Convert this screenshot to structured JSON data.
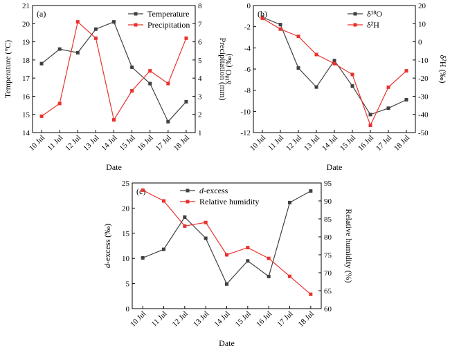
{
  "chart_data": [
    {
      "type": "line",
      "panel_label": "(a)",
      "categories": [
        "10 Jul",
        "11 Jul",
        "12 Jul",
        "13 Jul",
        "14 Jul",
        "15 Jul",
        "16 Jul",
        "17 Jul",
        "18 Jul"
      ],
      "xlabel": "Date",
      "ylabel_left": "Temperature (°C)",
      "ylabel_right": "Precipitation (mm)",
      "ylim_left": [
        14,
        21
      ],
      "ylim_right": [
        1,
        8
      ],
      "yticks_left": [
        "14",
        "15",
        "16",
        "17",
        "18",
        "19",
        "20",
        "21"
      ],
      "yticks_right": [
        "1",
        "2",
        "3",
        "4",
        "5",
        "6",
        "7",
        "8"
      ],
      "legend_position": "top-right",
      "series": [
        {
          "name": "Temperature",
          "axis": "left",
          "color": "#404040",
          "marker": "square",
          "values": [
            17.8,
            18.6,
            18.4,
            19.7,
            20.1,
            17.6,
            16.7,
            14.6,
            15.7
          ]
        },
        {
          "name": "Precipitation",
          "axis": "right",
          "color": "#e8322d",
          "marker": "square",
          "values": [
            1.9,
            2.6,
            7.1,
            6.2,
            1.7,
            3.3,
            4.4,
            3.7,
            6.2
          ]
        }
      ]
    },
    {
      "type": "line",
      "panel_label": "(b)",
      "categories": [
        "10 Jul",
        "11 Jul",
        "12 Jul",
        "13 Jul",
        "14 Jul",
        "15 Jul",
        "16 Jul",
        "17 Jul",
        "18 Jul"
      ],
      "xlabel": "Date",
      "ylabel_left": "δ¹⁸O (‰)",
      "ylabel_right": "δ²H (‰)",
      "ylim_left": [
        -12,
        0
      ],
      "ylim_right": [
        -50,
        20
      ],
      "yticks_left": [
        "-12",
        "-10",
        "-8",
        "-6",
        "-4",
        "-2",
        "0"
      ],
      "yticks_right": [
        "-50",
        "-40",
        "-30",
        "-20",
        "-10",
        "0",
        "10",
        "20"
      ],
      "legend_position": "top-right",
      "series": [
        {
          "name": "δ¹⁸O",
          "axis": "left",
          "color": "#404040",
          "marker": "square",
          "values": [
            -1.1,
            -1.8,
            -5.9,
            -7.7,
            -5.2,
            -7.6,
            -10.3,
            -9.7,
            -8.9
          ]
        },
        {
          "name": "δ²H",
          "axis": "right",
          "color": "#e8322d",
          "marker": "square",
          "values": [
            13,
            7,
            3,
            -7,
            -12,
            -18,
            -46,
            -25,
            -16
          ]
        }
      ]
    },
    {
      "type": "line",
      "panel_label": "(c)",
      "categories": [
        "10 Jul",
        "11 Jul",
        "12 Jul",
        "13 Jul",
        "14 Jul",
        "15 Jul",
        "16 Jul",
        "17 Jul",
        "18 Jul"
      ],
      "xlabel": "Date",
      "ylabel_left": "d-excess (‰)",
      "ylabel_right": "Relative humidity (%)",
      "ylim_left": [
        0,
        25
      ],
      "ylim_right": [
        60,
        95
      ],
      "yticks_left": [
        "0",
        "5",
        "10",
        "15",
        "20",
        "25"
      ],
      "yticks_right": [
        "60",
        "65",
        "70",
        "75",
        "80",
        "85",
        "90",
        "95"
      ],
      "legend_position": "top-center",
      "series": [
        {
          "name": "d-excess",
          "axis": "left",
          "color": "#404040",
          "marker": "square",
          "values": [
            10.1,
            11.8,
            18.2,
            14.0,
            4.9,
            9.5,
            6.4,
            21.1,
            23.4
          ]
        },
        {
          "name": "Relative humidity",
          "axis": "right",
          "color": "#e8322d",
          "marker": "square",
          "values": [
            93,
            90,
            83,
            84,
            75,
            77,
            74,
            69,
            64
          ]
        }
      ]
    }
  ]
}
